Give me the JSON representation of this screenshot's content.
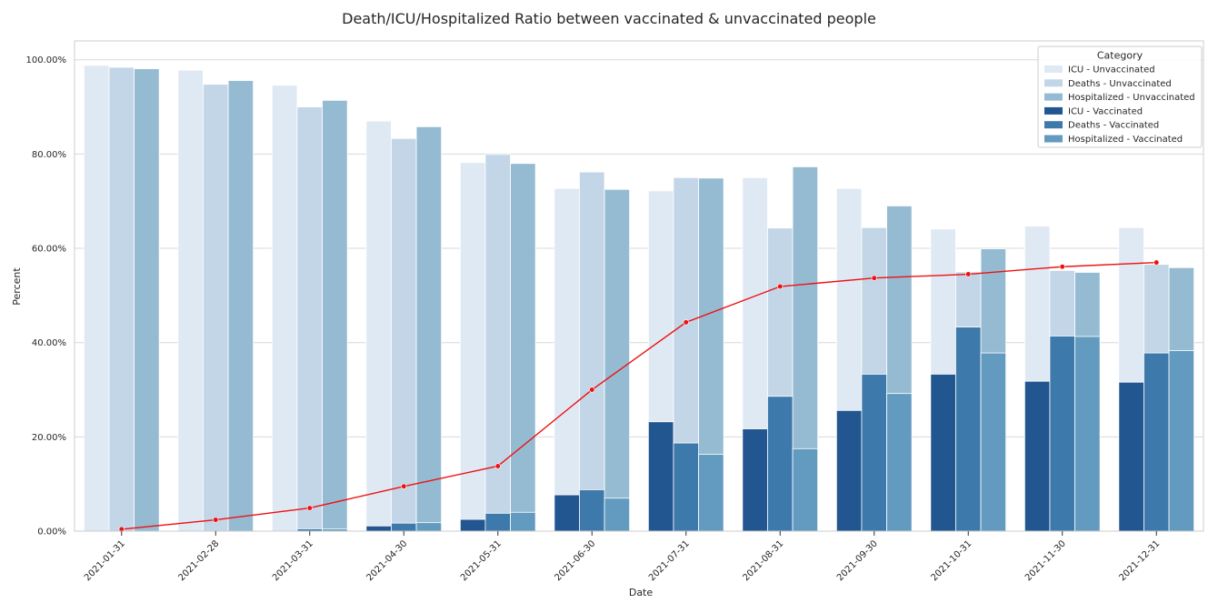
{
  "chart_data": {
    "type": "bar",
    "title": "Death/ICU/Hospitalized Ratio between vaccinated & unvaccinated people",
    "xlabel": "Date",
    "ylabel": "Percent",
    "ylim": [
      0,
      104
    ],
    "yticks": [
      0,
      20,
      40,
      60,
      80,
      100
    ],
    "ytick_labels": [
      "0.00%",
      "20.00%",
      "40.00%",
      "60.00%",
      "80.00%",
      "100.00%"
    ],
    "grid": "horizontal",
    "categories": [
      "2021-01-31",
      "2021-02-28",
      "2021-03-31",
      "2021-04-30",
      "2021-05-31",
      "2021-06-30",
      "2021-07-31",
      "2021-08-31",
      "2021-09-30",
      "2021-10-31",
      "2021-11-30",
      "2021-12-31"
    ],
    "series": [
      {
        "name": "ICU - Unvaccinated",
        "group": "unvaccinated",
        "color": "#dfe9f4",
        "slot": 0,
        "values": [
          98.8,
          97.8,
          94.6,
          87.0,
          78.2,
          72.7,
          72.2,
          75.0,
          72.7,
          64.1,
          64.7,
          64.4
        ]
      },
      {
        "name": "Deaths - Unvaccinated",
        "group": "unvaccinated",
        "color": "#c2d6e7",
        "slot": 1,
        "values": [
          98.4,
          94.8,
          90.0,
          83.3,
          79.9,
          76.2,
          75.0,
          64.3,
          64.4,
          55.0,
          55.3,
          56.6
        ]
      },
      {
        "name": "Hospitalized - Unvaccinated",
        "group": "unvaccinated",
        "color": "#95bbd3",
        "slot": 2,
        "values": [
          98.1,
          95.6,
          91.4,
          85.8,
          78.0,
          72.5,
          74.9,
          77.3,
          69.0,
          59.9,
          54.9,
          55.9
        ]
      },
      {
        "name": "ICU - Vaccinated",
        "group": "vaccinated",
        "color": "#215690",
        "slot": 0,
        "values": [
          0.0,
          0.0,
          0.0,
          1.1,
          2.5,
          7.7,
          23.2,
          21.7,
          25.6,
          33.3,
          31.8,
          31.6
        ]
      },
      {
        "name": "Deaths - Vaccinated",
        "group": "vaccinated",
        "color": "#3d79ab",
        "slot": 1,
        "values": [
          0.0,
          0.0,
          0.5,
          1.7,
          3.8,
          8.8,
          18.7,
          28.6,
          33.3,
          43.3,
          41.4,
          37.8
        ]
      },
      {
        "name": "Hospitalized - Vaccinated",
        "group": "vaccinated",
        "color": "#639bc0",
        "slot": 2,
        "values": [
          0.0,
          0.0,
          0.5,
          1.8,
          4.0,
          7.0,
          16.3,
          17.5,
          29.2,
          37.8,
          41.3,
          38.3
        ]
      }
    ],
    "line": {
      "color": "#ee1111",
      "values": [
        0.4,
        2.4,
        4.9,
        9.5,
        13.8,
        30.0,
        44.3,
        51.9,
        53.7,
        54.5,
        56.1,
        57.0
      ]
    },
    "legend": {
      "title": "Category",
      "position": "top-right",
      "entries": [
        "ICU - Unvaccinated",
        "Deaths - Unvaccinated",
        "Hospitalized - Unvaccinated",
        "ICU - Vaccinated",
        "Deaths - Vaccinated",
        "Hospitalized - Vaccinated"
      ]
    }
  }
}
